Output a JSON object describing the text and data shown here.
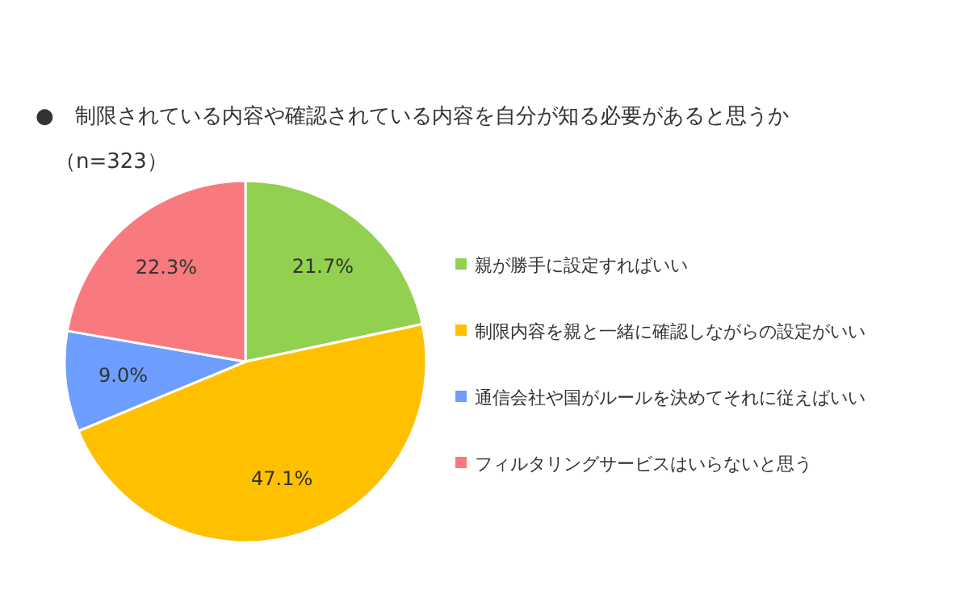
{
  "chart_data": {
    "type": "pie",
    "title": "●　制限されている内容や確認されている内容を自分が知る必要があると思うか",
    "subtitle": "（n=323）",
    "categories": [
      "親が勝手に設定すればいい",
      "制限内容を親と一緒に確認しながらの設定がいい",
      "通信会社や国がルールを決めてそれに従えばいい",
      "フィルタリングサービスはいらないと思う"
    ],
    "values": [
      21.7,
      47.1,
      9.0,
      22.3
    ],
    "colors": [
      "#92d050",
      "#ffc000",
      "#6d9eff",
      "#f8797e"
    ],
    "value_labels": [
      "21.7%",
      "47.1%",
      "9.0%",
      "22.3%"
    ],
    "legend": "right"
  }
}
